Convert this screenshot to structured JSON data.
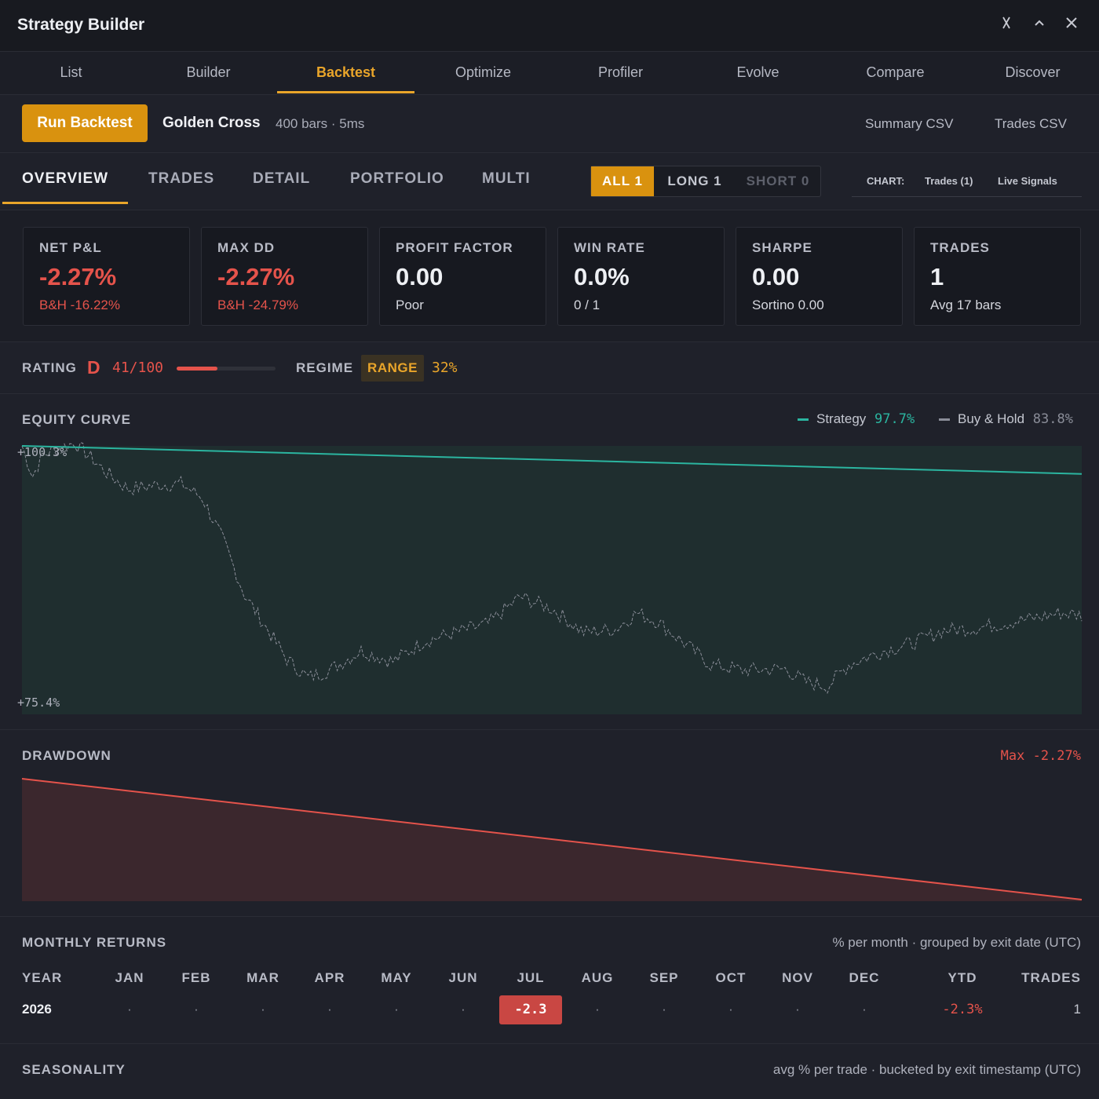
{
  "window": {
    "title": "Strategy Builder",
    "controls": [
      "pin-icon",
      "chevron-up-icon",
      "close-icon"
    ]
  },
  "main_tabs": [
    "List",
    "Builder",
    "Backtest",
    "Optimize",
    "Profiler",
    "Evolve",
    "Compare",
    "Discover"
  ],
  "active_main_tab": "Backtest",
  "toolbar": {
    "run_label": "Run Backtest",
    "strategy_name": "Golden Cross",
    "meta": "400 bars · 5ms",
    "summary_csv": "Summary CSV",
    "trades_csv": "Trades CSV"
  },
  "sub_tabs": [
    "OVERVIEW",
    "TRADES",
    "DETAIL",
    "PORTFOLIO",
    "MULTI"
  ],
  "active_sub_tab": "OVERVIEW",
  "filter": {
    "all": "ALL 1",
    "long": "LONG 1",
    "short": "SHORT 0",
    "active": "ALL"
  },
  "chart_opts": {
    "label": "CHART:",
    "trades": "Trades (1)",
    "live": "Live Signals"
  },
  "stats": [
    {
      "label": "NET P&L",
      "value": "-2.27%",
      "sub": "B&H -16.22%"
    },
    {
      "label": "MAX DD",
      "value": "-2.27%",
      "sub": "B&H -24.79%"
    },
    {
      "label": "PROFIT FACTOR",
      "value": "0.00",
      "sub": "Poor"
    },
    {
      "label": "WIN RATE",
      "value": "0.0%",
      "sub": "0 / 1"
    },
    {
      "label": "SHARPE",
      "value": "0.00",
      "sub": "Sortino 0.00"
    },
    {
      "label": "TRADES",
      "value": "1",
      "sub": "Avg 17 bars"
    }
  ],
  "rating": {
    "label": "RATING",
    "grade": "D",
    "score": "41/100",
    "score_value": 41,
    "regime_label": "REGIME",
    "regime": "RANGE",
    "regime_pct": "32%"
  },
  "equity": {
    "title": "EQUITY CURVE",
    "legend_strategy": "Strategy",
    "legend_strategy_pct": "97.7%",
    "legend_bh": "Buy & Hold",
    "legend_bh_pct": "83.8%",
    "y_top_label": "+100.3%",
    "y_bottom_label": "+75.4%"
  },
  "drawdown": {
    "title": "DRAWDOWN",
    "max": "Max -2.27%"
  },
  "monthly": {
    "title": "MONTHLY RETURNS",
    "note": "% per month · grouped by exit date (UTC)",
    "headers": [
      "YEAR",
      "JAN",
      "FEB",
      "MAR",
      "APR",
      "MAY",
      "JUN",
      "JUL",
      "AUG",
      "SEP",
      "OCT",
      "NOV",
      "DEC",
      "YTD",
      "TRADES"
    ],
    "row": {
      "year": "2026",
      "cells": [
        "·",
        "·",
        "·",
        "·",
        "·",
        "·",
        "-2.3",
        "·",
        "·",
        "·",
        "·",
        "·"
      ],
      "ytd": "-2.3%",
      "trades": "1"
    }
  },
  "seasonality": {
    "title": "SEASONALITY",
    "note": "avg % per trade · bucketed by exit timestamp (UTC)"
  },
  "colors": {
    "accent": "#e9a52a",
    "negative": "#e5534b",
    "strategy_line": "#2bb5a0",
    "bh_line": "#8a8d98"
  },
  "chart_data": {
    "type": "line",
    "series": [
      {
        "name": "Strategy",
        "start": 100.3,
        "end": 97.7
      },
      {
        "name": "Buy & Hold",
        "start": 100.3,
        "end": 83.8
      }
    ],
    "ylim": [
      75.4,
      100.3
    ],
    "drawdown": {
      "start": 0,
      "end": -2.27
    }
  }
}
